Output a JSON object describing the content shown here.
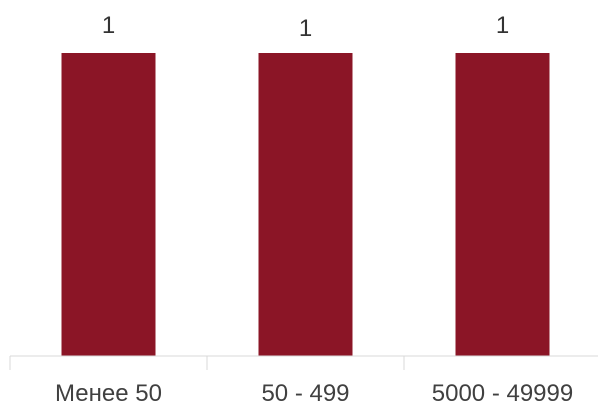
{
  "chart_data": {
    "type": "bar",
    "title": "",
    "xlabel": "",
    "ylabel": "",
    "categories": [
      "Менее 50",
      "50 - 499",
      "5000 - 49999"
    ],
    "values": [
      1,
      1,
      1
    ],
    "data_labels": [
      "1",
      "1",
      "1"
    ],
    "ylim": [
      0,
      1
    ],
    "grid": false,
    "legend": "none",
    "bar_color": "#8b1526",
    "axis_color": "#d9d9d9"
  }
}
